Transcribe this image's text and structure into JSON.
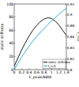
{
  "chart_data": {
    "type": "line",
    "x_label": "F_peak/BBW",
    "y_label": "static stiffness",
    "y2_label": "f_n,0",
    "x": [
      0,
      0.1,
      0.2,
      0.3,
      0.4,
      0.5,
      0.6,
      0.7,
      0.8,
      0.9,
      1,
      1.1,
      1.2,
      1.3,
      1.4
    ],
    "xlim": [
      0,
      1.4
    ],
    "xticks": [
      0,
      0.2,
      0.4,
      0.6,
      0.8,
      1,
      1.2,
      1.4
    ],
    "ylim": [
      0,
      100
    ],
    "yticks": [
      0,
      20,
      40,
      60,
      80,
      100
    ],
    "y2lim": [
      0.8,
      0.92
    ],
    "y2ticks": [
      0.8,
      0.82,
      0.84,
      0.86,
      0.88,
      0.9,
      0.92
    ],
    "legend": "lower right",
    "series": [
      {
        "name": "static stiffness",
        "color": "#000000",
        "values": [
          5,
          18,
          30,
          41,
          51,
          60,
          67,
          73,
          77,
          79,
          78,
          74,
          68,
          60,
          52
        ]
      },
      {
        "name": "f_n,0",
        "color": "#1fa0c8",
        "axis": "y2",
        "values": [
          0.8,
          0.812,
          0.823,
          0.833,
          0.843,
          0.852,
          0.86,
          0.868,
          0.875,
          0.882,
          0.889,
          0.895,
          0.901,
          0.907,
          0.912
        ]
      }
    ]
  }
}
